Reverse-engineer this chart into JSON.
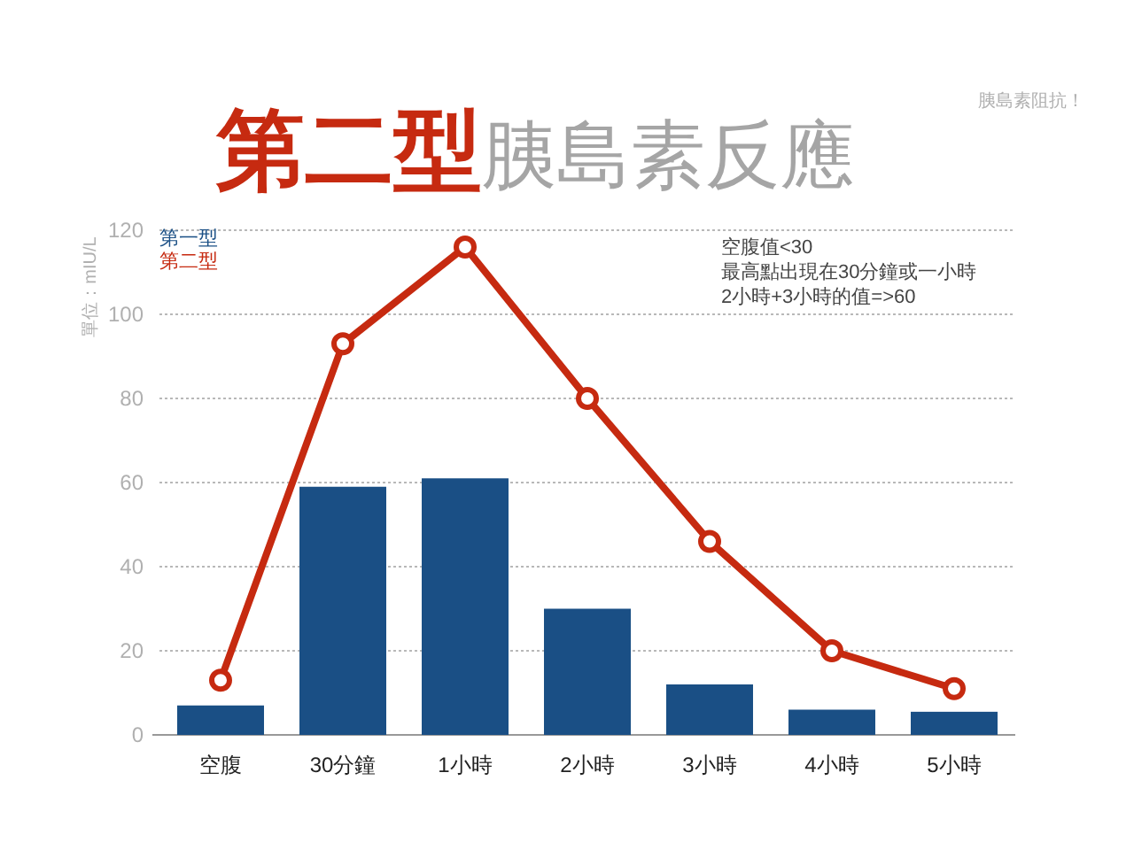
{
  "chart_data": {
    "type": "bar",
    "title": "第二型",
    "subtitle": "胰島素反應",
    "ylabel": "單位：mIU/L",
    "categories": [
      "空腹",
      "30分鐘",
      "1小時",
      "2小時",
      "3小時",
      "4小時",
      "5小時"
    ],
    "series": [
      {
        "name": "第一型",
        "color": "#1a4f85",
        "values": [
          7,
          59,
          61,
          30,
          12,
          6,
          5.5
        ]
      },
      {
        "name": "第二型",
        "color": "#c62a10",
        "type": "line",
        "values": [
          13,
          93,
          116,
          80,
          46,
          20,
          11
        ]
      }
    ],
    "ylim": [
      0,
      120
    ],
    "yticks": [
      0,
      20,
      40,
      60,
      80,
      100,
      120
    ],
    "grid": "y",
    "legend": "top left",
    "marker": "circle",
    "annotations": [
      "胰島素阻抗！",
      "空腹值<30\n最高點出現在30分鐘或一小時\n2小時+3小時的值=>60"
    ]
  }
}
